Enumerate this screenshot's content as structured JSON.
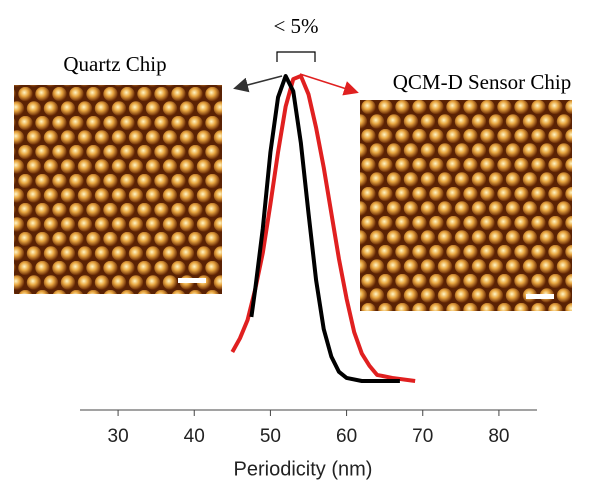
{
  "chart_data": {
    "type": "line",
    "xlabel": "Periodicity (nm)",
    "xlim": [
      25,
      85
    ],
    "xticks": [
      30,
      40,
      50,
      60,
      70,
      80
    ],
    "ylim": [
      0,
      1
    ],
    "annotation": "< 5%",
    "image_labels": [
      "Quartz Chip",
      "QCM-D Sensor Chip"
    ],
    "series": [
      {
        "color": "#000000",
        "x": [
          47.5,
          48,
          49,
          50,
          51,
          52,
          53,
          54,
          55,
          56,
          57,
          58,
          59,
          60,
          62,
          64,
          67
        ],
        "values": [
          0.21,
          0.3,
          0.5,
          0.75,
          0.93,
          1.0,
          0.95,
          0.78,
          0.55,
          0.33,
          0.17,
          0.08,
          0.03,
          0.01,
          0,
          0,
          0
        ]
      },
      {
        "color": "#e02020",
        "x": [
          45,
          46,
          47,
          48,
          49,
          50,
          51,
          52,
          53,
          54,
          55,
          56,
          57,
          58,
          59,
          60,
          61,
          62,
          63,
          64,
          66,
          69
        ],
        "values": [
          0.095,
          0.14,
          0.2,
          0.3,
          0.42,
          0.58,
          0.75,
          0.9,
          0.99,
          1.0,
          0.94,
          0.83,
          0.7,
          0.55,
          0.4,
          0.27,
          0.16,
          0.09,
          0.05,
          0.02,
          0.01,
          0
        ]
      }
    ]
  }
}
